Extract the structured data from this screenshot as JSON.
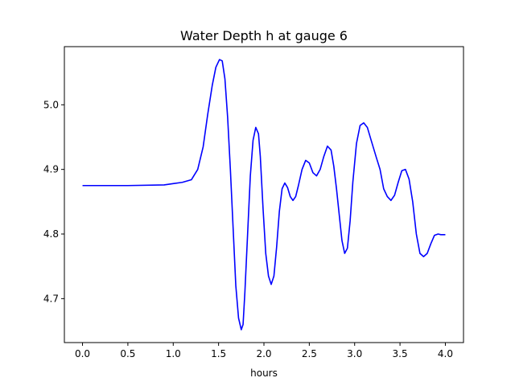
{
  "chart_data": {
    "type": "line",
    "title": "Water Depth h at gauge 6",
    "xlabel": "hours",
    "ylabel": "",
    "xlim": [
      -0.2,
      4.2
    ],
    "ylim": [
      4.632,
      5.09
    ],
    "xticks": [
      0.0,
      0.5,
      1.0,
      1.5,
      2.0,
      2.5,
      3.0,
      3.5,
      4.0
    ],
    "xtick_labels": [
      "0.0",
      "0.5",
      "1.0",
      "1.5",
      "2.0",
      "2.5",
      "3.0",
      "3.5",
      "4.0"
    ],
    "yticks": [
      4.7,
      4.8,
      4.9,
      5.0
    ],
    "ytick_labels": [
      "4.7",
      "4.8",
      "4.9",
      "5.0"
    ],
    "grid": false,
    "series": [
      {
        "color": "#0000ff",
        "x": [
          0.0,
          0.5,
          0.9,
          1.0,
          1.1,
          1.2,
          1.27,
          1.33,
          1.38,
          1.43,
          1.47,
          1.51,
          1.54,
          1.57,
          1.6,
          1.63,
          1.66,
          1.69,
          1.72,
          1.75,
          1.77,
          1.79,
          1.82,
          1.85,
          1.88,
          1.91,
          1.94,
          1.96,
          1.99,
          2.02,
          2.05,
          2.08,
          2.11,
          2.14,
          2.17,
          2.2,
          2.23,
          2.26,
          2.29,
          2.32,
          2.35,
          2.38,
          2.42,
          2.46,
          2.5,
          2.54,
          2.58,
          2.62,
          2.66,
          2.7,
          2.74,
          2.77,
          2.8,
          2.83,
          2.86,
          2.89,
          2.92,
          2.95,
          2.98,
          3.02,
          3.06,
          3.1,
          3.14,
          3.18,
          3.21,
          3.24,
          3.28,
          3.32,
          3.36,
          3.4,
          3.44,
          3.48,
          3.52,
          3.56,
          3.6,
          3.64,
          3.68,
          3.72,
          3.76,
          3.8,
          3.84,
          3.88,
          3.92,
          3.95,
          3.98,
          4.0
        ],
        "y": [
          4.875,
          4.875,
          4.876,
          4.878,
          4.88,
          4.884,
          4.9,
          4.935,
          4.985,
          5.03,
          5.058,
          5.07,
          5.068,
          5.04,
          4.98,
          4.9,
          4.81,
          4.72,
          4.67,
          4.652,
          4.66,
          4.71,
          4.8,
          4.89,
          4.945,
          4.965,
          4.955,
          4.92,
          4.84,
          4.77,
          4.735,
          4.722,
          4.735,
          4.78,
          4.835,
          4.87,
          4.879,
          4.872,
          4.858,
          4.852,
          4.858,
          4.875,
          4.9,
          4.914,
          4.91,
          4.895,
          4.89,
          4.9,
          4.92,
          4.936,
          4.93,
          4.905,
          4.87,
          4.83,
          4.79,
          4.77,
          4.778,
          4.82,
          4.88,
          4.94,
          4.968,
          4.972,
          4.965,
          4.946,
          4.932,
          4.918,
          4.9,
          4.87,
          4.858,
          4.852,
          4.86,
          4.88,
          4.898,
          4.9,
          4.885,
          4.85,
          4.8,
          4.77,
          4.765,
          4.77,
          4.785,
          4.798,
          4.8,
          4.799,
          4.799,
          4.799
        ]
      }
    ]
  }
}
